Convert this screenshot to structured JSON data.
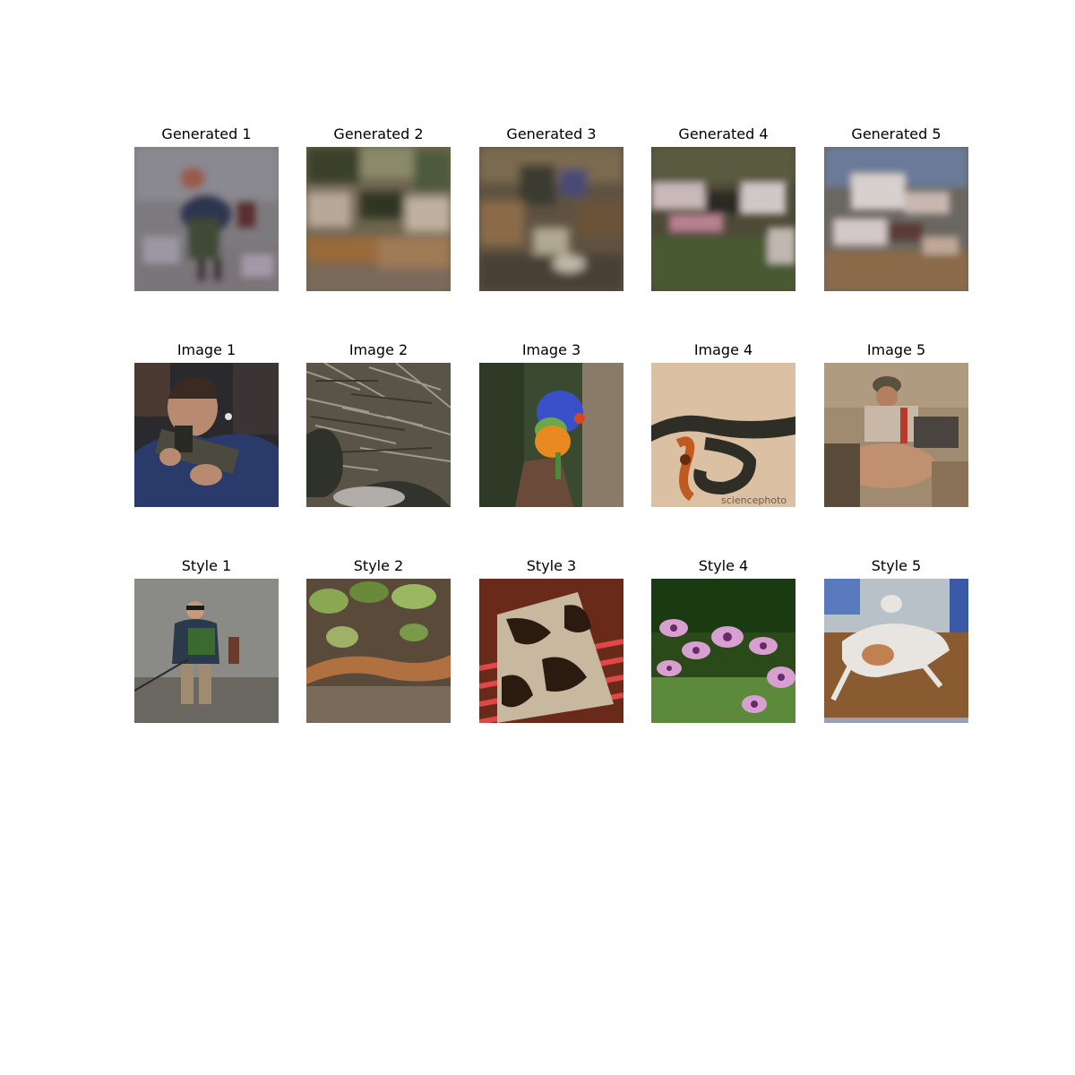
{
  "rows": [
    {
      "name": "generated",
      "titles": [
        "Generated 1",
        "Generated 2",
        "Generated 3",
        "Generated 4",
        "Generated 5"
      ]
    },
    {
      "name": "image",
      "titles": [
        "Image 1",
        "Image 2",
        "Image 3",
        "Image 4",
        "Image 5"
      ]
    },
    {
      "name": "style",
      "titles": [
        "Style 1",
        "Style 2",
        "Style 3",
        "Style 4",
        "Style 5"
      ]
    }
  ],
  "image4_watermark": "sciencephoto"
}
